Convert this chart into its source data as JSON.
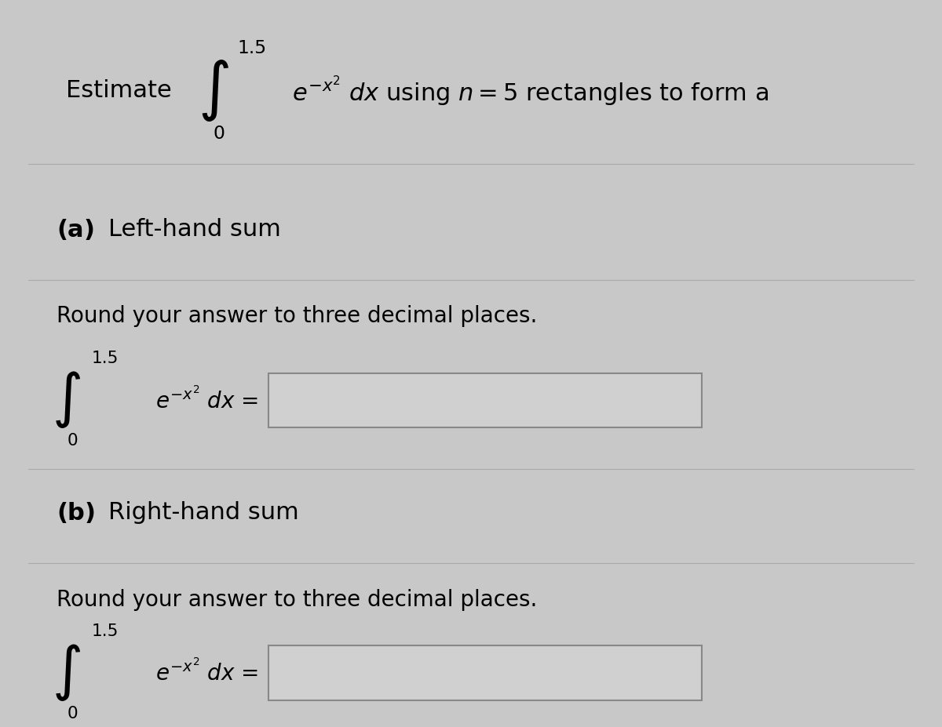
{
  "background_color": "#c8c8c8",
  "text_color": "#000000",
  "answer_box_color": "#d0d0d0",
  "answer_box_edge_color": "#888888",
  "font_size_main": 22,
  "font_size_label": 22,
  "font_size_round": 20,
  "font_size_integral": 20,
  "integral_upper": "1.5",
  "integral_lower": "0",
  "part_a_text": "Left-hand sum",
  "part_b_text": "Right-hand sum",
  "round_text": "Round your answer to three decimal places.",
  "estimate_text": "Estimate",
  "using_text": " using $n = 5$ rectangles to form a",
  "divider_color": "#aaaaaa",
  "divider_linewidth": 0.8
}
